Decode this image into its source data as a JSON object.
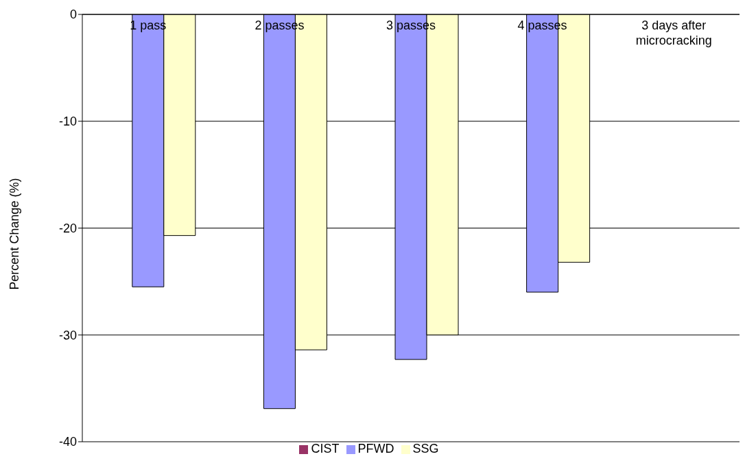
{
  "chart_data": {
    "type": "bar",
    "ylabel": "Percent Change (%)",
    "categories": [
      "1 pass",
      "2 passes",
      "3 passes",
      "4 passes",
      "3 days after microcracking"
    ],
    "series": [
      {
        "name": "CIST",
        "color": "#993366",
        "values": [
          null,
          null,
          null,
          null,
          null
        ]
      },
      {
        "name": "PFWD",
        "color": "#9999ff",
        "values": [
          -25.5,
          -36.9,
          -32.3,
          -26.0,
          null
        ]
      },
      {
        "name": "SSG",
        "color": "#ffffcc",
        "values": [
          -20.7,
          -31.4,
          -30.0,
          -23.2,
          null
        ]
      }
    ],
    "ylim": [
      -40,
      0
    ],
    "yticks": [
      -40,
      -30,
      -20,
      -10,
      0
    ],
    "grid": "y",
    "legend": "bottom"
  }
}
